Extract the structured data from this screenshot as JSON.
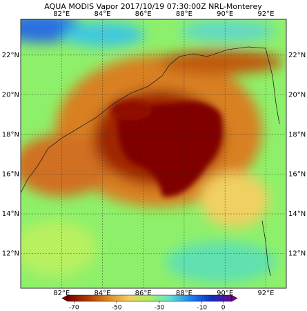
{
  "map": {
    "title": "AQUA MODIS Vapor 2017/10/19 07:30:00Z NRL-Monterey",
    "lonlim": [
      80,
      93
    ],
    "latlim": [
      10.25,
      23.8
    ],
    "lonticks": [
      {
        "value": 82,
        "label": "82°E"
      },
      {
        "value": 84,
        "label": "84°E"
      },
      {
        "value": 86,
        "label": "86°E"
      },
      {
        "value": 88,
        "label": "88°E"
      },
      {
        "value": 90,
        "label": "90°E"
      },
      {
        "value": 92,
        "label": "92°E"
      }
    ],
    "latticks": [
      {
        "value": 12,
        "label": "12°N"
      },
      {
        "value": 14,
        "label": "14°N"
      },
      {
        "value": 16,
        "label": "16°N"
      },
      {
        "value": 18,
        "label": "18°N"
      },
      {
        "value": 20,
        "label": "20°N"
      },
      {
        "value": 22,
        "label": "22°N"
      }
    ],
    "colorbar": {
      "lim": [
        -73,
        4
      ],
      "ticks": [
        -70,
        -50,
        -30,
        -10,
        0
      ],
      "colors": [
        "#7a0000",
        "#b03a00",
        "#e08a20",
        "#f0d060",
        "#a8f060",
        "#60e0d0",
        "#2080f0",
        "#1030c0",
        "#6a0a8a"
      ]
    }
  }
}
